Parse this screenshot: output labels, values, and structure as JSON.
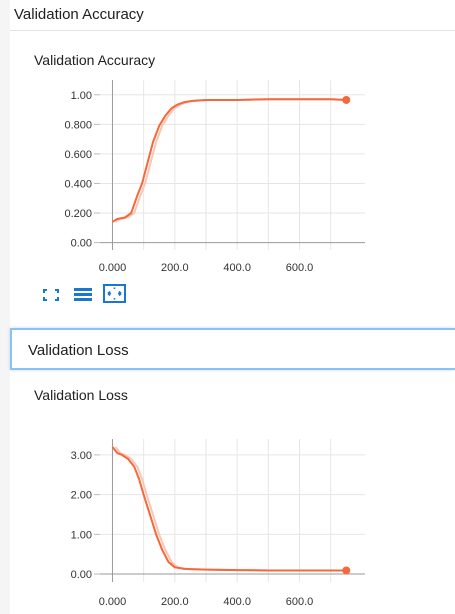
{
  "sections": [
    {
      "title": "Validation Accuracy",
      "card_title": "Validation Accuracy"
    },
    {
      "title": "Validation Loss",
      "card_title": "Validation Loss"
    }
  ],
  "toolbar": {
    "icons": [
      "fullscreen-icon",
      "list-icon",
      "fit-domain-icon"
    ]
  },
  "colors": {
    "accent": "#1976d2",
    "series": "#f4683a",
    "series_smoothed_shadow": "#f7c6b5",
    "highlight_border": "#8cc2f3"
  },
  "chart_data": [
    {
      "type": "line",
      "title": "Validation Accuracy",
      "xlabel": "",
      "ylabel": "",
      "xlim": [
        -40,
        810
      ],
      "ylim": [
        -0.05,
        1.1
      ],
      "x_ticks": [
        "0.000",
        "200.0",
        "400.0",
        "600.0"
      ],
      "y_ticks": [
        "0.00",
        "0.200",
        "0.400",
        "0.600",
        "0.800",
        "1.00"
      ],
      "series": [
        {
          "x": [
            0,
            15,
            40,
            60,
            80,
            95,
            110,
            130,
            150,
            170,
            190,
            210,
            230,
            260,
            300,
            350,
            400,
            500,
            600,
            700,
            750
          ],
          "y": [
            0.14,
            0.16,
            0.17,
            0.2,
            0.32,
            0.4,
            0.52,
            0.68,
            0.79,
            0.86,
            0.91,
            0.935,
            0.95,
            0.96,
            0.965,
            0.965,
            0.965,
            0.97,
            0.97,
            0.97,
            0.965
          ]
        }
      ],
      "last_point": {
        "x": 750,
        "y": 0.965
      }
    },
    {
      "type": "line",
      "title": "Validation Loss",
      "xlabel": "",
      "ylabel": "",
      "xlim": [
        -40,
        810
      ],
      "ylim": [
        -0.2,
        3.4
      ],
      "x_ticks": [
        "0.000",
        "200.0",
        "400.0",
        "600.0"
      ],
      "y_ticks": [
        "0.00",
        "1.00",
        "2.00",
        "3.00"
      ],
      "series": [
        {
          "x": [
            0,
            15,
            30,
            50,
            70,
            85,
            100,
            120,
            140,
            160,
            180,
            200,
            230,
            260,
            300,
            400,
            500,
            600,
            700,
            750
          ],
          "y": [
            3.2,
            3.05,
            3.0,
            2.9,
            2.7,
            2.4,
            2.0,
            1.5,
            1.0,
            0.6,
            0.3,
            0.17,
            0.13,
            0.12,
            0.11,
            0.1,
            0.09,
            0.09,
            0.09,
            0.09
          ]
        }
      ],
      "last_point": {
        "x": 750,
        "y": 0.09
      }
    }
  ]
}
